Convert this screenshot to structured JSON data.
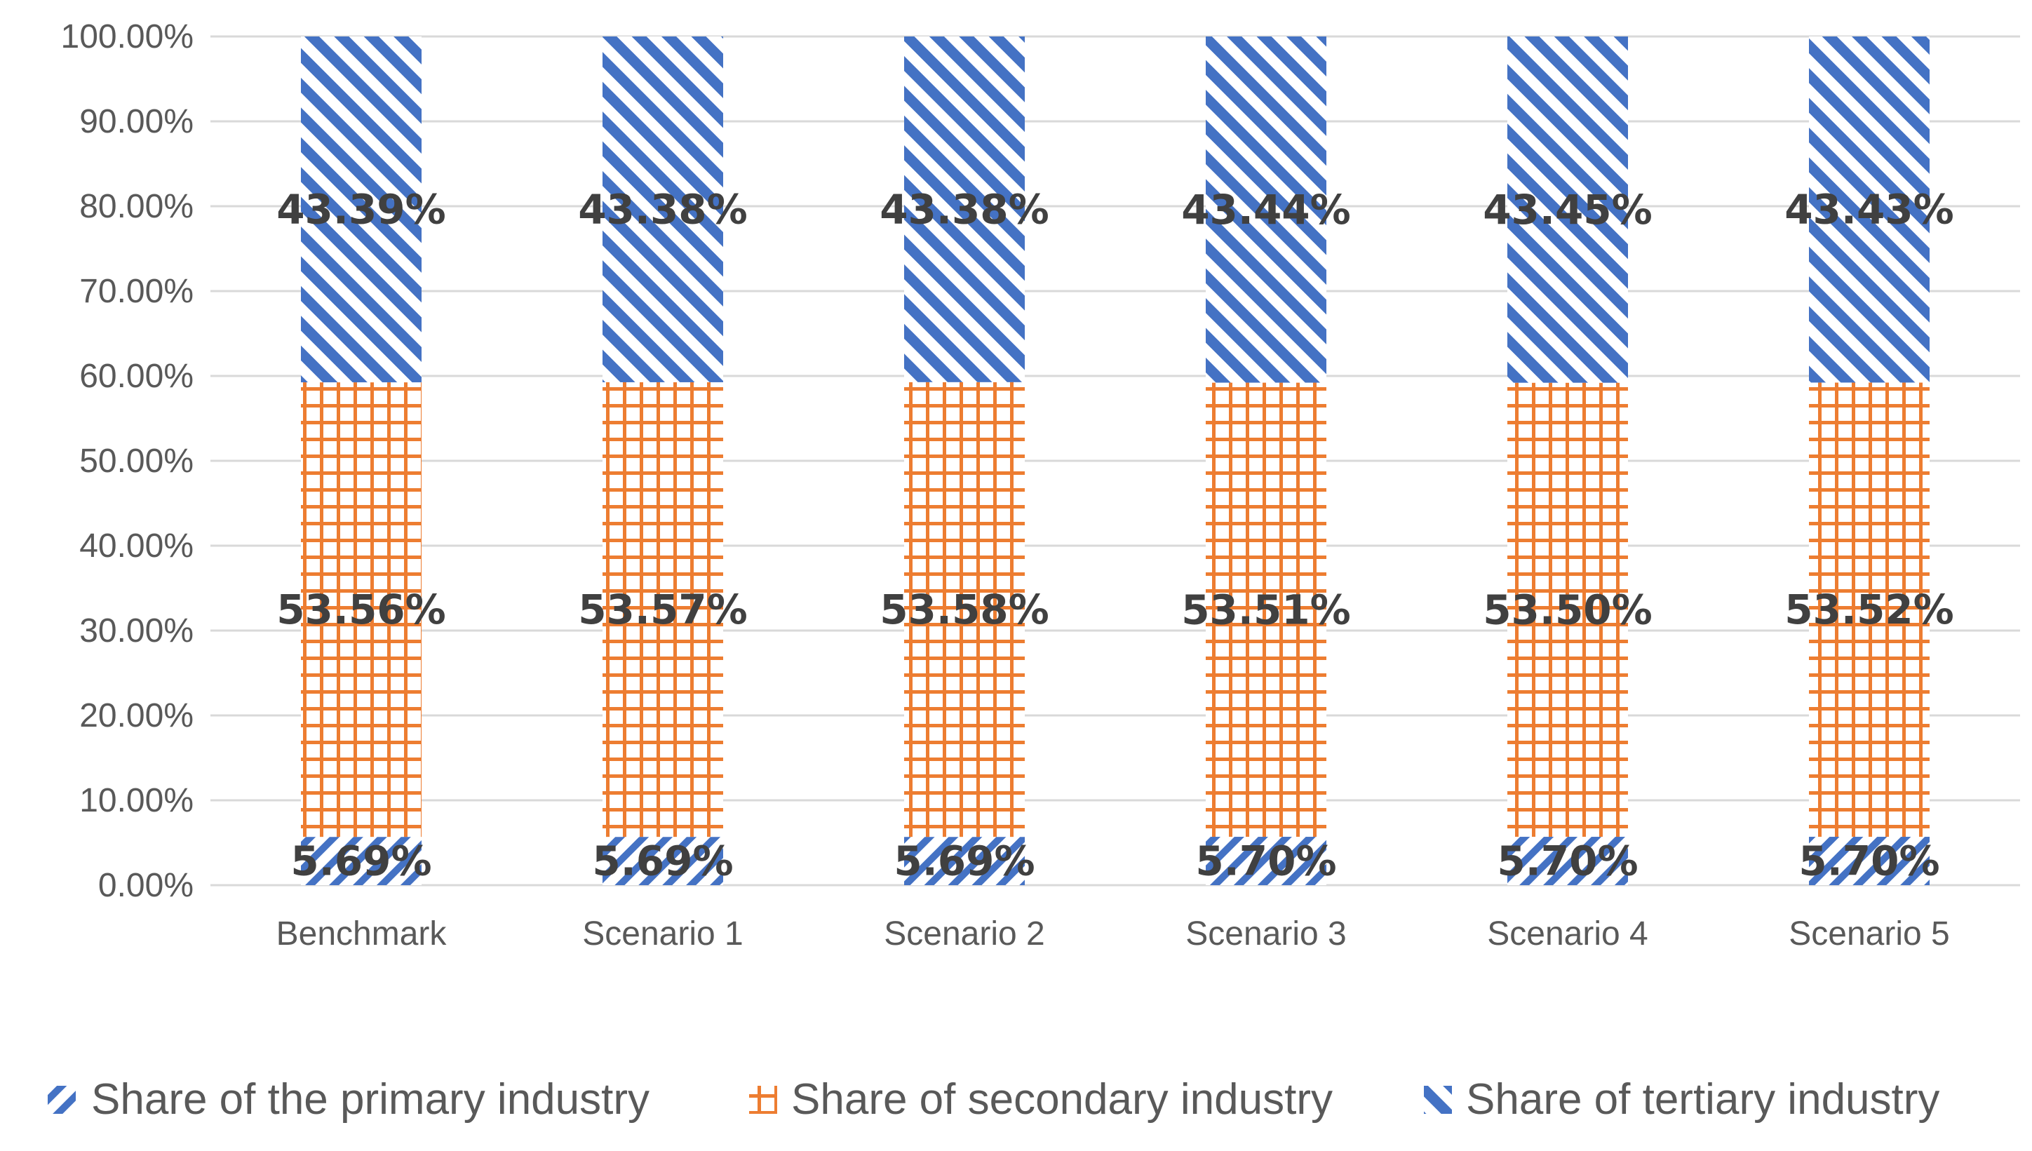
{
  "chart_data": {
    "type": "bar",
    "stacked": true,
    "title": "",
    "xlabel": "",
    "ylabel": "",
    "ylim": [
      0,
      100
    ],
    "yticks": [
      "0.00%",
      "10.00%",
      "20.00%",
      "30.00%",
      "40.00%",
      "50.00%",
      "60.00%",
      "70.00%",
      "80.00%",
      "90.00%",
      "100.00%"
    ],
    "grid": true,
    "legend_position": "bottom",
    "categories": [
      "Benchmark",
      "Scenario 1",
      "Scenario 2",
      "Scenario 3",
      "Scenario 4",
      "Scenario 5"
    ],
    "series": [
      {
        "name": "Share of the primary industry",
        "color": "#4472C4",
        "pattern": "dark-downward-diagonal",
        "values": [
          5.69,
          5.69,
          5.69,
          5.7,
          5.7,
          5.7
        ],
        "labels": [
          "5.69%",
          "5.69%",
          "5.69%",
          "5.70%",
          "5.70%",
          "5.70%"
        ]
      },
      {
        "name": "Share of secondary industry",
        "color": "#ED7D31",
        "pattern": "grid",
        "values": [
          53.56,
          53.57,
          53.58,
          53.51,
          53.5,
          53.52
        ],
        "labels": [
          "53.56%",
          "53.57%",
          "53.58%",
          "53.51%",
          "53.50%",
          "53.52%"
        ]
      },
      {
        "name": "Share of tertiary industry",
        "color": "#4472C4",
        "pattern": "wide-upward-diagonal",
        "values": [
          43.39,
          43.38,
          43.38,
          43.44,
          43.45,
          43.43
        ],
        "labels": [
          "43.39%",
          "43.38%",
          "43.38%",
          "43.44%",
          "43.45%",
          "43.43%"
        ]
      }
    ]
  }
}
